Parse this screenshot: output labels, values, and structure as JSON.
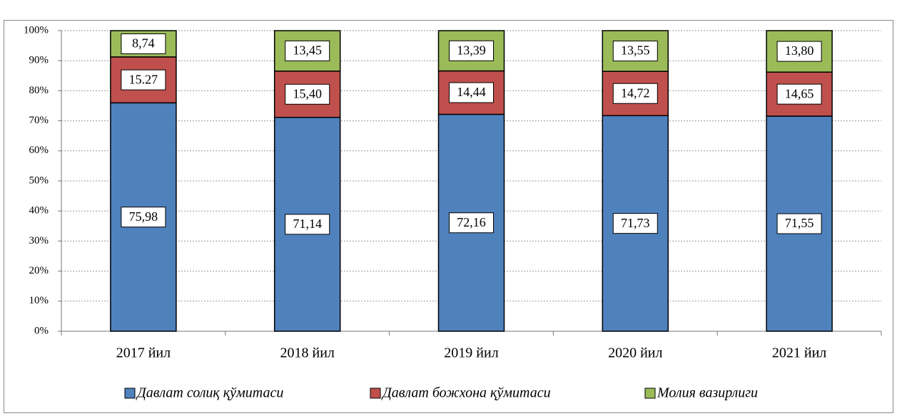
{
  "chart_data": {
    "type": "stacked_bar",
    "categories": [
      "2017 йил",
      "2018 йил",
      "2019 йил",
      "2020 йил",
      "2021 йил"
    ],
    "series": [
      {
        "name": "Давлат солиқ қўмитаси",
        "color": "#4f81bd",
        "values": [
          75.98,
          71.14,
          72.16,
          71.73,
          71.55
        ],
        "value_labels": [
          "75,98",
          "71,14",
          "72,16",
          "71,73",
          "71,55"
        ]
      },
      {
        "name": "Давлат божхона қўмитаси",
        "color": "#c0504d",
        "values": [
          15.27,
          15.4,
          14.44,
          14.72,
          14.65
        ],
        "value_labels": [
          "15.27",
          "15,40",
          "14,44",
          "14,72",
          "14,65"
        ]
      },
      {
        "name": "Молия вазирлиги",
        "color": "#9bbb59",
        "values": [
          8.74,
          13.45,
          13.39,
          13.55,
          13.8
        ],
        "value_labels": [
          "8,74",
          "13,45",
          "13,39",
          "13,55",
          "13,80"
        ]
      }
    ],
    "ylim": [
      0,
      100
    ],
    "yticks": [
      {
        "value": 0,
        "label": "0%"
      },
      {
        "value": 10,
        "label": "10%"
      },
      {
        "value": 20,
        "label": "20%"
      },
      {
        "value": 30,
        "label": "30%"
      },
      {
        "value": 40,
        "label": "40%"
      },
      {
        "value": 50,
        "label": "50%"
      },
      {
        "value": 60,
        "label": "60%"
      },
      {
        "value": 70,
        "label": "70%"
      },
      {
        "value": 80,
        "label": "80%"
      },
      {
        "value": 90,
        "label": "90%"
      },
      {
        "value": 100,
        "label": "100%"
      }
    ],
    "grid": true,
    "legend": "bottom"
  }
}
